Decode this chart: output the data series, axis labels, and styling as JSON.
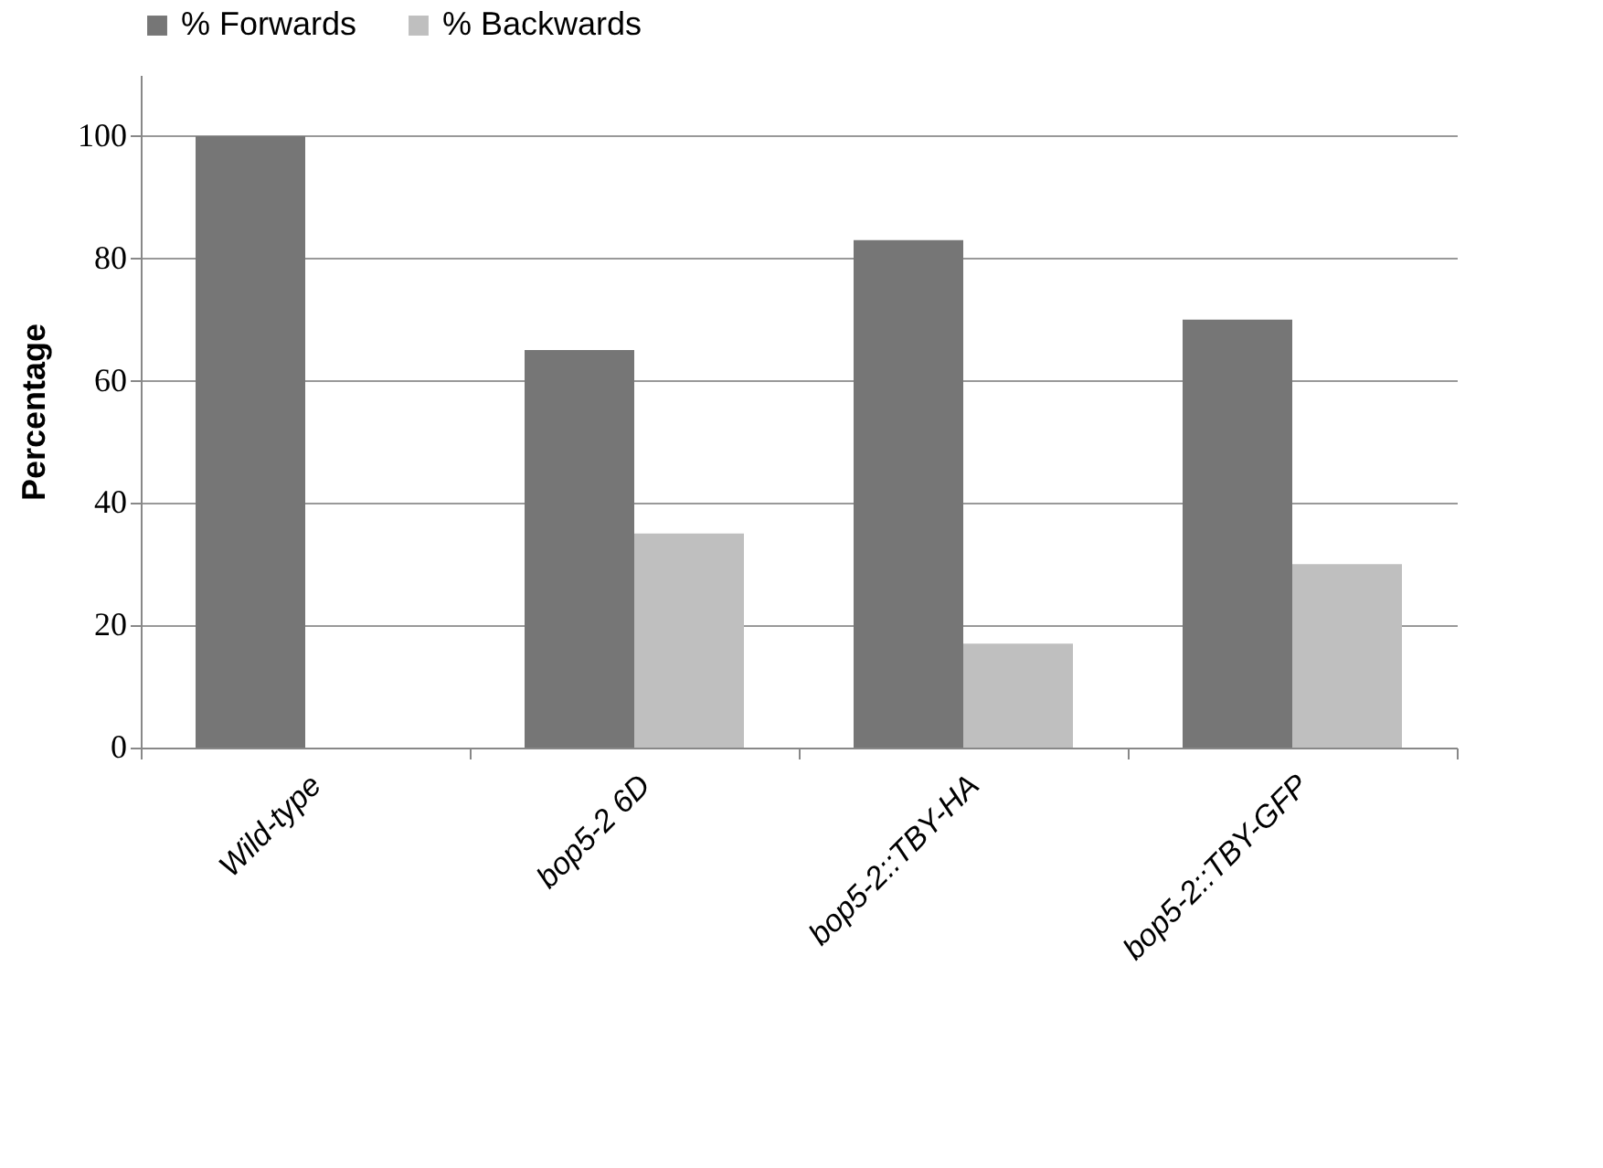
{
  "chart_data": {
    "type": "bar",
    "ylabel": "Percentage",
    "categories": [
      "Wild-type",
      "bop5-2 6D",
      "bop5-2::TBY-HA",
      "bop5-2::TBY-GFP"
    ],
    "series": [
      {
        "name": "% Forwards",
        "color": "#767676",
        "values": [
          100,
          65,
          83,
          70
        ]
      },
      {
        "name": "% Backwards",
        "color": "#bfbfbf",
        "values": [
          0,
          35,
          17,
          30
        ]
      }
    ],
    "ylim": [
      0,
      110
    ],
    "yticks": [
      0,
      20,
      40,
      60,
      80,
      100
    ],
    "grid": "y",
    "legend": "top"
  }
}
